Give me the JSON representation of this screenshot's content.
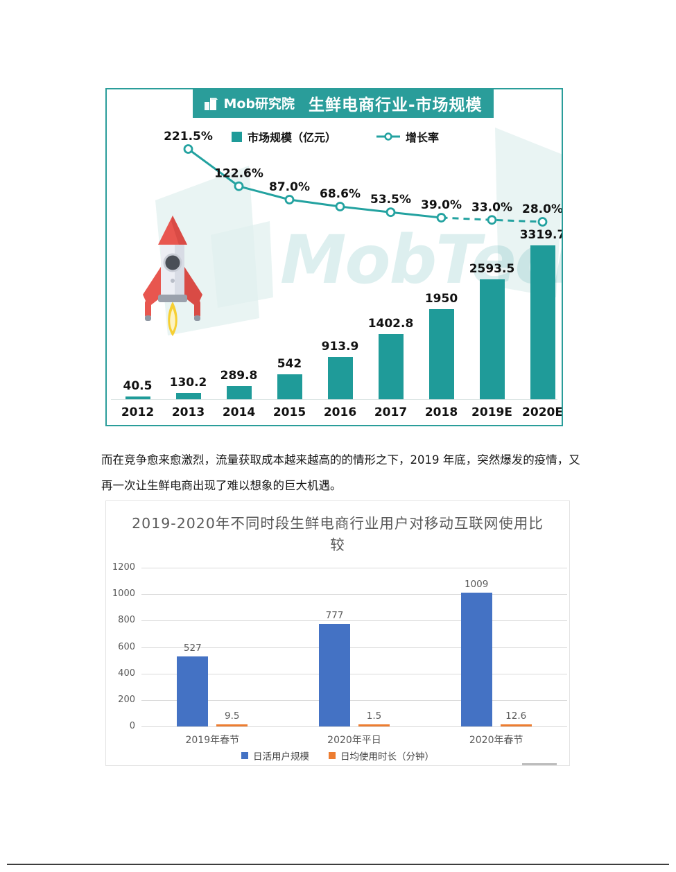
{
  "chart1": {
    "brand": "Mob研究院",
    "banner_title": "生鲜电商行业-市场规模",
    "legend": {
      "bar_label": "市场规模（亿元）",
      "line_label": "增长率"
    },
    "watermark": "MobTech",
    "colors": {
      "teal_bar": "#1f9b99",
      "teal_line": "#23a2a0",
      "banner": "#2a9d9a",
      "label_text": "#111111"
    }
  },
  "paragraph": "而在竞争愈来愈激烈，流量获取成本越来越高的的情形之下，2019 年底，突然爆发的疫情，又再一次让生鲜电商出现了难以想象的巨大机遇。",
  "chart2": {
    "colors": {
      "blue": "#4472c4",
      "orange": "#ed7d31",
      "grid": "#d9d9d9",
      "text": "#595959"
    }
  },
  "chart_data": [
    {
      "type": "bar+line",
      "title": "生鲜电商行业-市场规模",
      "categories": [
        "2012",
        "2013",
        "2014",
        "2015",
        "2016",
        "2017",
        "2018",
        "2019E",
        "2020E"
      ],
      "series": [
        {
          "name": "市场规模（亿元）",
          "type": "bar",
          "values": [
            40.5,
            130.2,
            289.8,
            542,
            913.9,
            1402.8,
            1950,
            2593.5,
            3319.7
          ],
          "labels": [
            "40.5",
            "130.2",
            "289.8",
            "542",
            "913.9",
            "1402.8",
            "1950",
            "2593.5",
            "3319.7"
          ]
        },
        {
          "name": "增长率",
          "type": "line",
          "unit": "%",
          "x_categories": [
            "2013",
            "2014",
            "2015",
            "2016",
            "2017",
            "2018",
            "2019E",
            "2020E"
          ],
          "values": [
            221.5,
            122.6,
            87.0,
            68.6,
            53.5,
            39.0,
            33.0,
            28.0
          ],
          "labels": [
            "221.5%",
            "122.6%",
            "87.0%",
            "68.6%",
            "53.5%",
            "39.0%",
            "33.0%",
            "28.0%"
          ],
          "dashed_from_category": "2018"
        }
      ],
      "legend_position": "top",
      "grid": false
    },
    {
      "type": "bar",
      "title": "2019-2020年不同时段生鲜电商行业用户对移动互联网使用比较",
      "categories": [
        "2019年春节",
        "2020年平日",
        "2020年春节"
      ],
      "series": [
        {
          "name": "日活用户规模",
          "values": [
            527,
            777,
            1009
          ],
          "labels": [
            "527",
            "777",
            "1009"
          ],
          "color": "#4472c4"
        },
        {
          "name": "日均使用时长（分钟）",
          "values": [
            9.5,
            1.5,
            12.6
          ],
          "labels": [
            "9.5",
            "1.5",
            "12.6"
          ],
          "color": "#ed7d31"
        }
      ],
      "ylim": [
        0,
        1200
      ],
      "yticks": [
        0,
        200,
        400,
        600,
        800,
        1000,
        1200
      ],
      "grid": true,
      "legend_position": "bottom"
    }
  ]
}
